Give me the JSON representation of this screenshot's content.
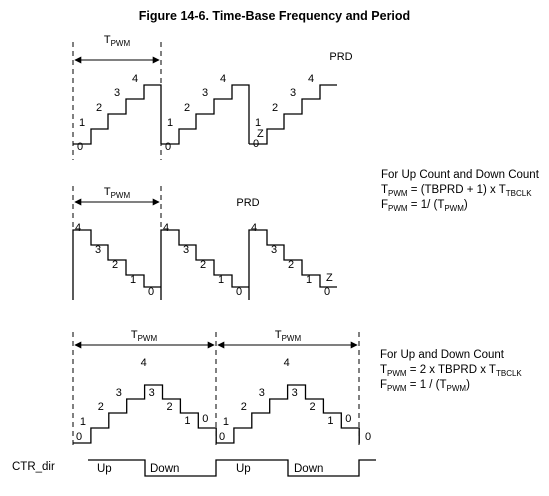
{
  "title": "Figure 14-6. Time-Base Frequency and Period",
  "tpwm_label": {
    "base": "T",
    "sub": "PWM"
  },
  "prd_label": "PRD",
  "zero_label": "Z",
  "up_count": {
    "steps": [
      "0",
      "1",
      "2",
      "3",
      "4"
    ]
  },
  "down_count": {
    "steps": [
      "4",
      "3",
      "2",
      "1",
      "0"
    ]
  },
  "up_down_count": {
    "steps": [
      "0",
      "1",
      "2",
      "3",
      "4",
      "3",
      "2",
      "1",
      "0"
    ]
  },
  "notes_up_or_down": {
    "heading": "For Up Count and Down Count",
    "period": {
      "lhs": "T",
      "lhs_sub": "PWM",
      "rhs": " = (TBPRD + 1) x T",
      "rhs_sub": "TBCLK"
    },
    "freq": {
      "lhs": "F",
      "lhs_sub": "PWM",
      "rhs": " = 1/ (T",
      "rhs_sub": "PWM",
      "close": ")"
    }
  },
  "notes_up_and_down": {
    "heading": "For Up and Down Count",
    "period": {
      "lhs": "T",
      "lhs_sub": "PWM",
      "rhs": " = 2 x TBPRD x T",
      "rhs_sub": "TBCLK"
    },
    "freq": {
      "lhs": "F",
      "lhs_sub": "PWM",
      "rhs": " = 1 / (T",
      "rhs_sub": "PWM",
      "close": ")"
    }
  },
  "ctr_dir": {
    "label": "CTR_dir",
    "up": "Up",
    "down": "Down"
  }
}
